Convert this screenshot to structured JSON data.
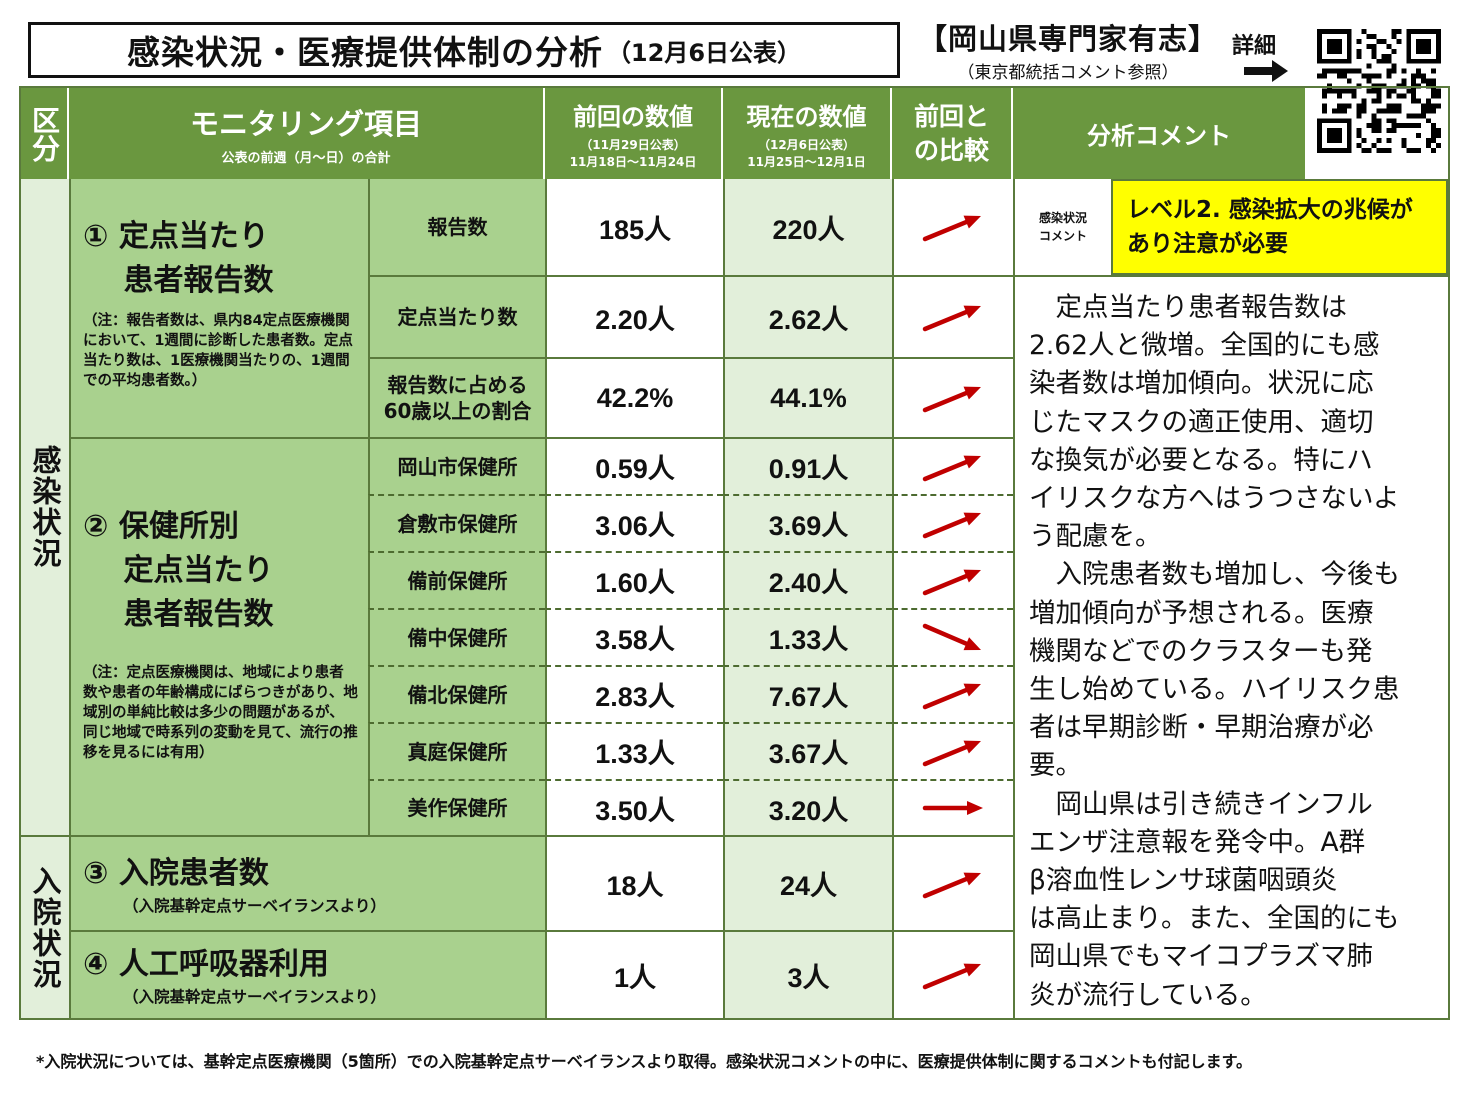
{
  "header": {
    "title": "感染状況・医療提供体制の分析",
    "date": "（12月6日公表）",
    "org": "【岡山県専門家有志】",
    "org_sub": "（東京都統括コメント参照）",
    "detail": "詳細"
  },
  "table_header": {
    "category": "区分",
    "item": "モニタリング項目",
    "item_sub": "公表の前週（月～日）の合計",
    "prev": "前回の数値",
    "prev_date": "（11月29日公表）",
    "prev_range": "11月18日～11月24日",
    "curr": "現在の数値",
    "curr_date": "（12月6日公表）",
    "curr_range": "11月25日～12月1日",
    "compare": "前回との比較",
    "comment": "分析コメント"
  },
  "sections": {
    "infection": "感染状況",
    "hospital": "入院状況"
  },
  "group1": {
    "title": "① 定点当たり\n　 患者報告数",
    "note": "（注：報告者数は、県内84定点医療機関において、1週間に診断した患者数。定点当たり数は、1医療機関当たりの、1週間での平均患者数。）",
    "rows": [
      {
        "label": "報告数",
        "prev": "185人",
        "curr": "220人",
        "trend": "up"
      },
      {
        "label": "定点当たり数",
        "prev": "2.20人",
        "curr": "2.62人",
        "trend": "up"
      },
      {
        "label": "報告数に占める\n60歳以上の割合",
        "prev": "42.2%",
        "curr": "44.1%",
        "trend": "up"
      }
    ]
  },
  "group2": {
    "title": "② 保健所別\n　 定点当たり\n　 患者報告数",
    "note": "（注：定点医療機関は、地域により患者数や患者の年齢構成にばらつきがあり、地域別の単純比較は多少の問題があるが、同じ地域で時系列の変動を見て、流行の推移を見るには有用）",
    "rows": [
      {
        "label": "岡山市保健所",
        "prev": "0.59人",
        "curr": "0.91人",
        "trend": "up"
      },
      {
        "label": "倉敷市保健所",
        "prev": "3.06人",
        "curr": "3.69人",
        "trend": "up"
      },
      {
        "label": "備前保健所",
        "prev": "1.60人",
        "curr": "2.40人",
        "trend": "up"
      },
      {
        "label": "備中保健所",
        "prev": "3.58人",
        "curr": "1.33人",
        "trend": "down"
      },
      {
        "label": "備北保健所",
        "prev": "2.83人",
        "curr": "7.67人",
        "trend": "up"
      },
      {
        "label": "真庭保健所",
        "prev": "1.33人",
        "curr": "3.67人",
        "trend": "up"
      },
      {
        "label": "美作保健所",
        "prev": "3.50人",
        "curr": "3.20人",
        "trend": "flat"
      }
    ]
  },
  "group3": {
    "title": "③ 入院患者数",
    "note": "（入院基幹定点サーベイランスより）",
    "prev": "18人",
    "curr": "24人",
    "trend": "up"
  },
  "group4": {
    "title": "④ 人工呼吸器利用",
    "note": "（入院基幹定点サーベイランスより）",
    "prev": "1人",
    "curr": "3人",
    "trend": "up"
  },
  "comment": {
    "label": "感染状況\nコメント",
    "level": "レベル2. 感染拡大の兆候があり注意が必要",
    "text": "　定点当たり患者報告数は\n2.62人と微増。全国的にも感\n染者数は増加傾向。状況に応\nじたマスクの適正使用、適切\nな換気が必要となる。特にハ\nイリスクな方へはうつさないよ\nう配慮を。\n　入院患者数も増加し、今後も\n増加傾向が予想される。医療\n機関などでのクラスターも発\n生し始めている。ハイリスク患\n者は早期診断・早期治療が必\n要。\n　岡山県は引き続きインフル\nエンザ注意報を発令中。A群\nβ溶血性レンサ球菌咽頭炎\nは高止まり。また、全国的にも\n岡山県でもマイコプラズマ肺\n炎が流行している。"
  },
  "footnote": "*入院状況については、基幹定点医療機関（5箇所）での入院基幹定点サーベイランスより取得。感染状況コメントの中に、医療提供体制に関するコメントも付記します。",
  "colors": {
    "header_green": "#6a973f",
    "mid_green": "#a9d18e",
    "light_green": "#e2efda",
    "level_yellow": "#ffff00",
    "arrow_red": "#c00000"
  }
}
